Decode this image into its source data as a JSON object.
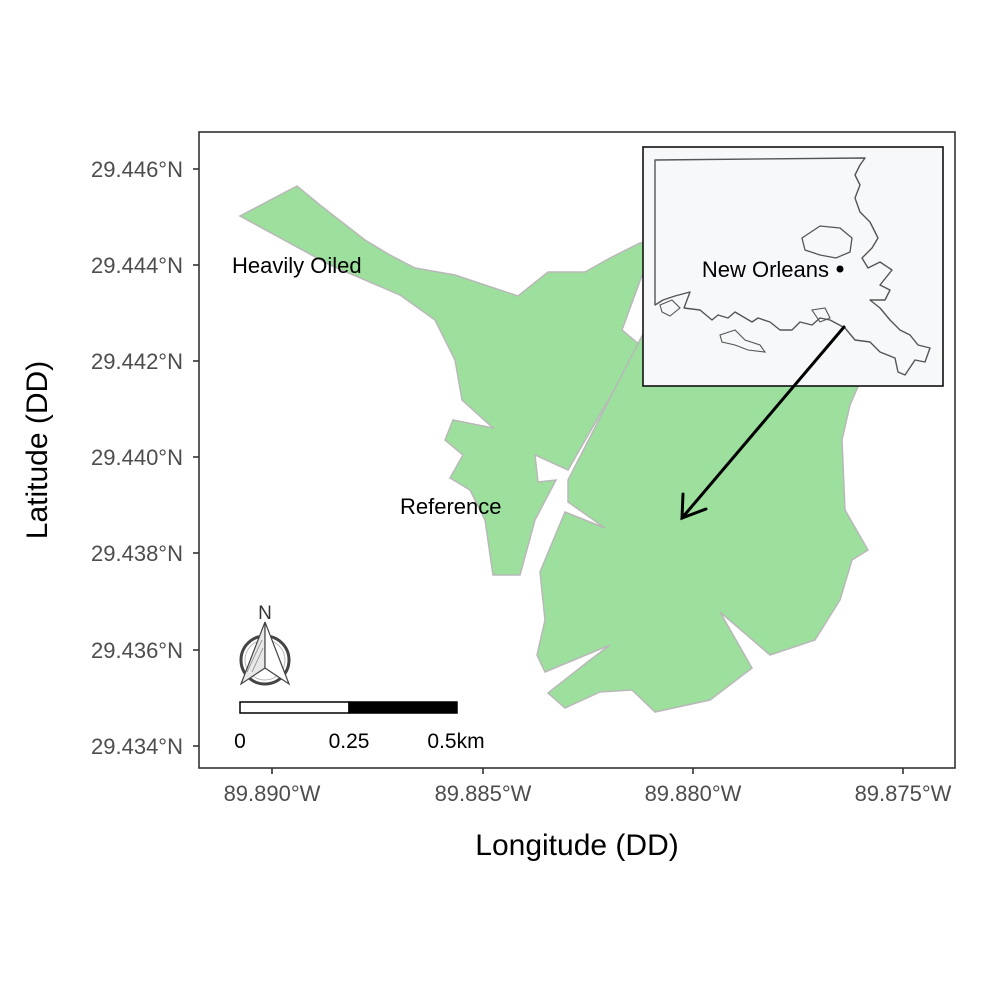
{
  "map": {
    "xlabel": "Longitude (DD)",
    "ylabel": "Latitude (DD)",
    "x_ticks": [
      "89.890°W",
      "89.885°W",
      "89.880°W",
      "89.875°W"
    ],
    "y_ticks": [
      "29.446°N",
      "29.444°N",
      "29.442°N",
      "29.440°N",
      "29.438°N",
      "29.436°N",
      "29.434°N"
    ],
    "site_labels": {
      "heavily_oiled": "Heavily Oiled",
      "reference": "Reference"
    },
    "inset_label": "New Orleans",
    "north_label": "N",
    "scale_labels": [
      "0",
      "0.25",
      "0.5km"
    ],
    "colors": {
      "land": "#9de09d",
      "land_border": "#b8b8b8",
      "inset_bg": "#f7f8fa",
      "frame": "#333333"
    }
  }
}
